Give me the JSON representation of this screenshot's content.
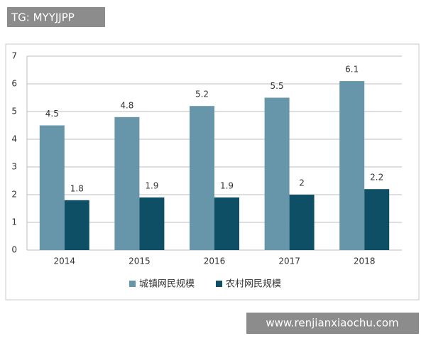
{
  "chart_data": {
    "type": "bar",
    "categories": [
      "2014",
      "2015",
      "2016",
      "2017",
      "2018"
    ],
    "series": [
      {
        "name": "城镇网民规模",
        "color": "#6796ab",
        "values": [
          4.5,
          4.8,
          5.2,
          5.5,
          6.1
        ]
      },
      {
        "name": "农村网民规模",
        "color": "#0e4f65",
        "values": [
          1.8,
          1.9,
          1.9,
          2,
          2.2
        ]
      }
    ],
    "ylim": [
      0,
      7
    ],
    "yticks": [
      0,
      1,
      2,
      3,
      4,
      5,
      6,
      7
    ],
    "grid": true,
    "legend": "bottom"
  },
  "watermarks": [
    "TG: MYYJJPP",
    "www.renjianxiaochu.com"
  ]
}
